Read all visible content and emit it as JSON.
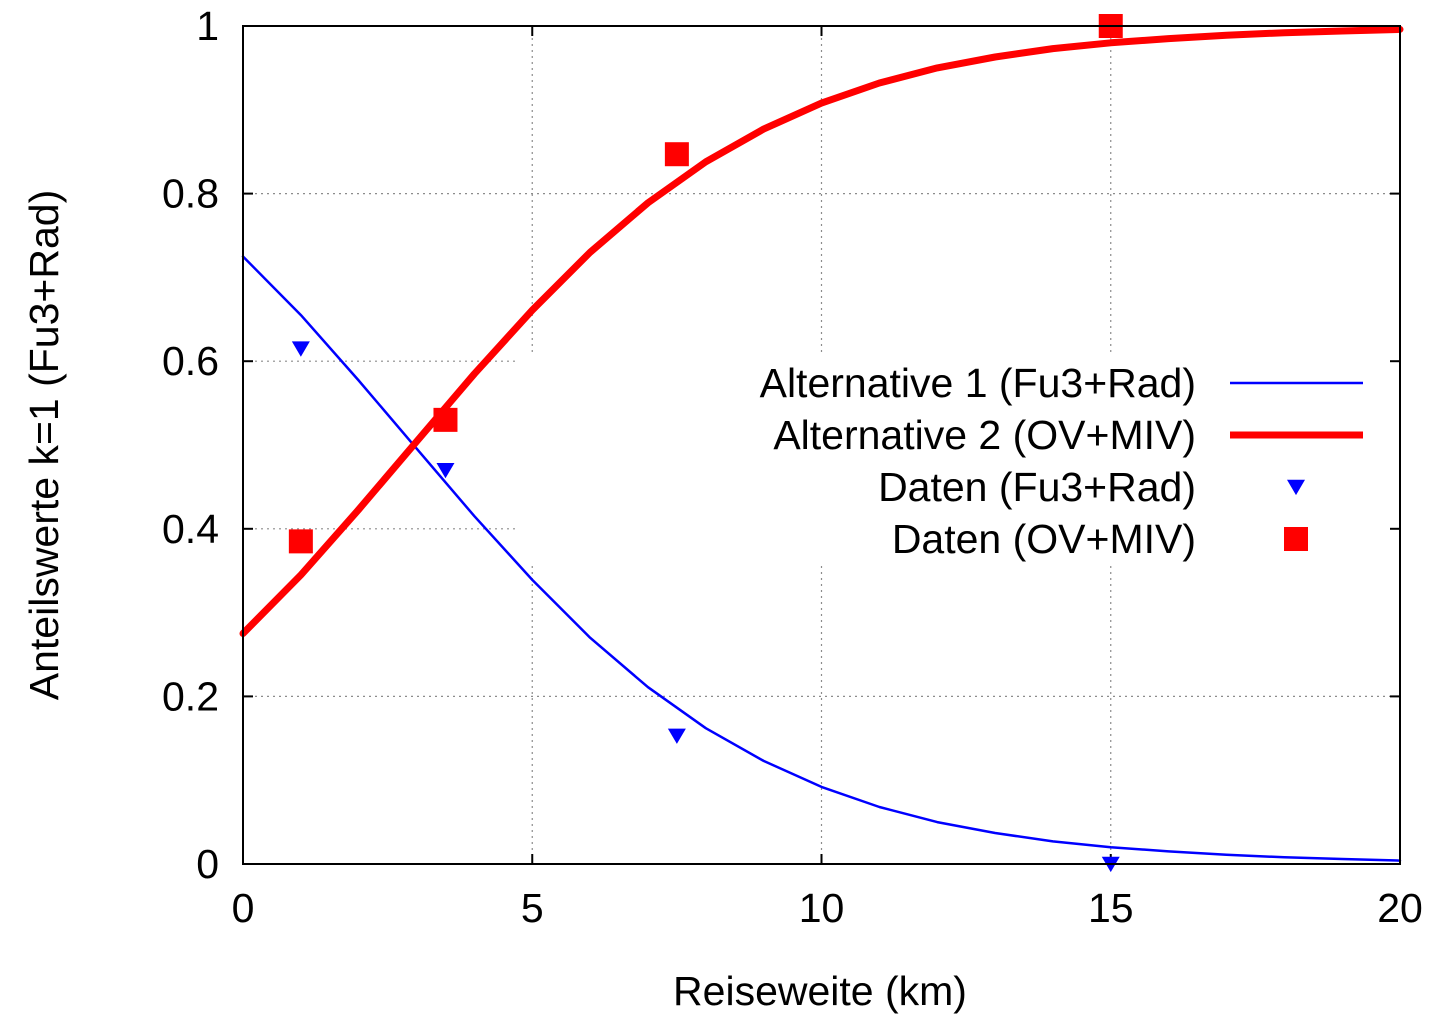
{
  "chart_data": {
    "type": "line",
    "title": "",
    "xlabel": "Reiseweite (km)",
    "ylabel": "Anteilswerte k=1 (Fu3+Rad)",
    "xlim": [
      0,
      20
    ],
    "ylim": [
      0,
      1
    ],
    "xticks": [
      0,
      5,
      10,
      15,
      20
    ],
    "xtick_labels": [
      "0",
      "5",
      "10",
      "15",
      "20"
    ],
    "yticks": [
      0,
      0.2,
      0.4,
      0.6,
      0.8,
      1
    ],
    "ytick_labels": [
      "0",
      "0.2",
      "0.4",
      "0.6",
      "0.8",
      "1"
    ],
    "grid": true,
    "legend_position": "right",
    "series": [
      {
        "name": "Alternative 1 (Fu3+Rad)",
        "kind": "line",
        "color": "#0000ff",
        "x": [
          0,
          1,
          2,
          3,
          4,
          5,
          6,
          7,
          8,
          9,
          10,
          11,
          12,
          13,
          14,
          15,
          16,
          17,
          18,
          19,
          20
        ],
        "y": [
          0.725,
          0.655,
          0.577,
          0.496,
          0.415,
          0.339,
          0.27,
          0.211,
          0.162,
          0.123,
          0.092,
          0.068,
          0.05,
          0.037,
          0.027,
          0.02,
          0.015,
          0.011,
          0.008,
          0.006,
          0.004
        ]
      },
      {
        "name": "Alternative 2 (OV+MIV)",
        "kind": "line",
        "color": "#ff0000",
        "x": [
          0,
          1,
          2,
          3,
          4,
          5,
          6,
          7,
          8,
          9,
          10,
          11,
          12,
          13,
          14,
          15,
          16,
          17,
          18,
          19,
          20
        ],
        "y": [
          0.275,
          0.345,
          0.423,
          0.504,
          0.585,
          0.661,
          0.73,
          0.789,
          0.838,
          0.877,
          0.908,
          0.932,
          0.95,
          0.963,
          0.973,
          0.98,
          0.985,
          0.989,
          0.992,
          0.994,
          0.996
        ]
      },
      {
        "name": "Daten (Fu3+Rad)",
        "kind": "scatter",
        "marker": "triangle-down",
        "color": "#0000ff",
        "x": [
          1,
          3.5,
          7.5,
          15
        ],
        "y": [
          0.615,
          0.47,
          0.153,
          0
        ]
      },
      {
        "name": "Daten (OV+MIV)",
        "kind": "scatter",
        "marker": "square",
        "color": "#ff0000",
        "x": [
          1,
          3.5,
          7.5,
          15
        ],
        "y": [
          0.385,
          0.53,
          0.847,
          1
        ]
      }
    ]
  }
}
